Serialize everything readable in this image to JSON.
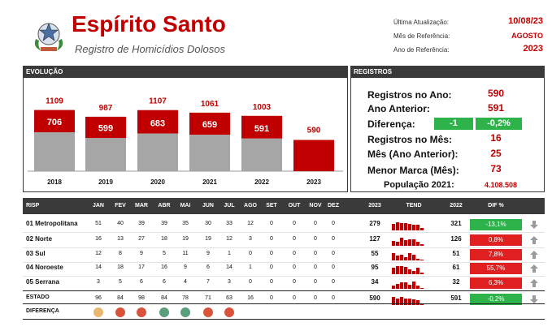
{
  "header": {
    "title": "Espírito Santo",
    "subtitle": "Registro de Homicídios Dolosos",
    "meta": [
      {
        "label": "Última Atualização:",
        "value": "10/08/23"
      },
      {
        "label": "Mês de Referência:",
        "value": "AGOSTO"
      },
      {
        "label": "Ano de Referência:",
        "value": "2023"
      }
    ]
  },
  "evolucao": {
    "heading": "EVOLUÇÃO"
  },
  "chart_data": {
    "type": "bar",
    "categories": [
      "2018",
      "2019",
      "2020",
      "2021",
      "2022",
      "2023"
    ],
    "series": [
      {
        "values": [
          706,
          599,
          683,
          659,
          591,
          590
        ]
      },
      {
        "values": [
          1109,
          987,
          1107,
          1061,
          1003,
          null
        ]
      }
    ],
    "top_labels": [
      "1109",
      "987",
      "1107",
      "1061",
      "1003",
      "590"
    ],
    "inner_labels": [
      "706",
      "599",
      "683",
      "659",
      "591",
      ""
    ],
    "colors": {
      "gray": "#a6a6a6",
      "red": "#c00000"
    }
  },
  "registros": {
    "heading": "REGISTROS",
    "rows": [
      {
        "label": "Registros no Ano:",
        "value": "590"
      },
      {
        "label": "Ano Anterior:",
        "value": "591"
      },
      {
        "label": "Diferença:",
        "value": "-1",
        "value2": "-0,2%"
      },
      {
        "label": "Registros no Mês:",
        "value": "16"
      },
      {
        "label": "Mês (Ano Anterior):",
        "value": "25"
      },
      {
        "label": "Menor Marca (Mês):",
        "value": "73"
      },
      {
        "label": "População 2021:",
        "value": "4.108.508"
      }
    ]
  },
  "table": {
    "headers": {
      "risp": "RISP",
      "months": [
        "JAN",
        "FEV",
        "MAR",
        "ABR",
        "MAI",
        "JUN",
        "JUL",
        "AGO",
        "SET",
        "OUT",
        "NOV",
        "DEZ"
      ],
      "y2023": "2023",
      "tend": "TEND",
      "y2022": "2022",
      "dif": "DIF %"
    },
    "rows": [
      {
        "name": "01 Metropolitana",
        "months": [
          "51",
          "40",
          "39",
          "39",
          "35",
          "30",
          "33",
          "12",
          "0",
          "0",
          "0",
          "0"
        ],
        "y2023": "279",
        "y2022": "321",
        "dif": "-13,1%",
        "dif_color": "green",
        "arrow": "down"
      },
      {
        "name": "02 Norte",
        "months": [
          "16",
          "13",
          "27",
          "18",
          "19",
          "19",
          "12",
          "3",
          "0",
          "0",
          "0",
          "0"
        ],
        "y2023": "127",
        "y2022": "126",
        "dif": "0,8%",
        "dif_color": "red",
        "arrow": "up"
      },
      {
        "name": "03 Sul",
        "months": [
          "12",
          "8",
          "9",
          "5",
          "11",
          "9",
          "1",
          "0",
          "0",
          "0",
          "0",
          "0"
        ],
        "y2023": "55",
        "y2022": "51",
        "dif": "7,8%",
        "dif_color": "red",
        "arrow": "up"
      },
      {
        "name": "04 Noroeste",
        "months": [
          "14",
          "18",
          "17",
          "16",
          "9",
          "6",
          "14",
          "1",
          "0",
          "0",
          "0",
          "0"
        ],
        "y2023": "95",
        "y2022": "61",
        "dif": "55,7%",
        "dif_color": "red",
        "arrow": "up"
      },
      {
        "name": "05 Serrana",
        "months": [
          "3",
          "5",
          "6",
          "6",
          "4",
          "7",
          "3",
          "0",
          "0",
          "0",
          "0",
          "0"
        ],
        "y2023": "34",
        "y2022": "32",
        "dif": "6,3%",
        "dif_color": "red",
        "arrow": "up"
      },
      {
        "name": "ESTADO",
        "months": [
          "96",
          "84",
          "98",
          "84",
          "78",
          "71",
          "63",
          "16",
          "0",
          "0",
          "0",
          "0"
        ],
        "y2023": "590",
        "y2022": "591",
        "dif": "-0,2%",
        "dif_color": "green",
        "arrow": "down"
      }
    ],
    "diferenca_label": "DIFERENÇA",
    "diferenca_dots": [
      "#e8b870",
      "#d9533a",
      "#d9533a",
      "#5a9e7a",
      "#5a9e7a",
      "#d9533a",
      "#d9533a"
    ]
  }
}
